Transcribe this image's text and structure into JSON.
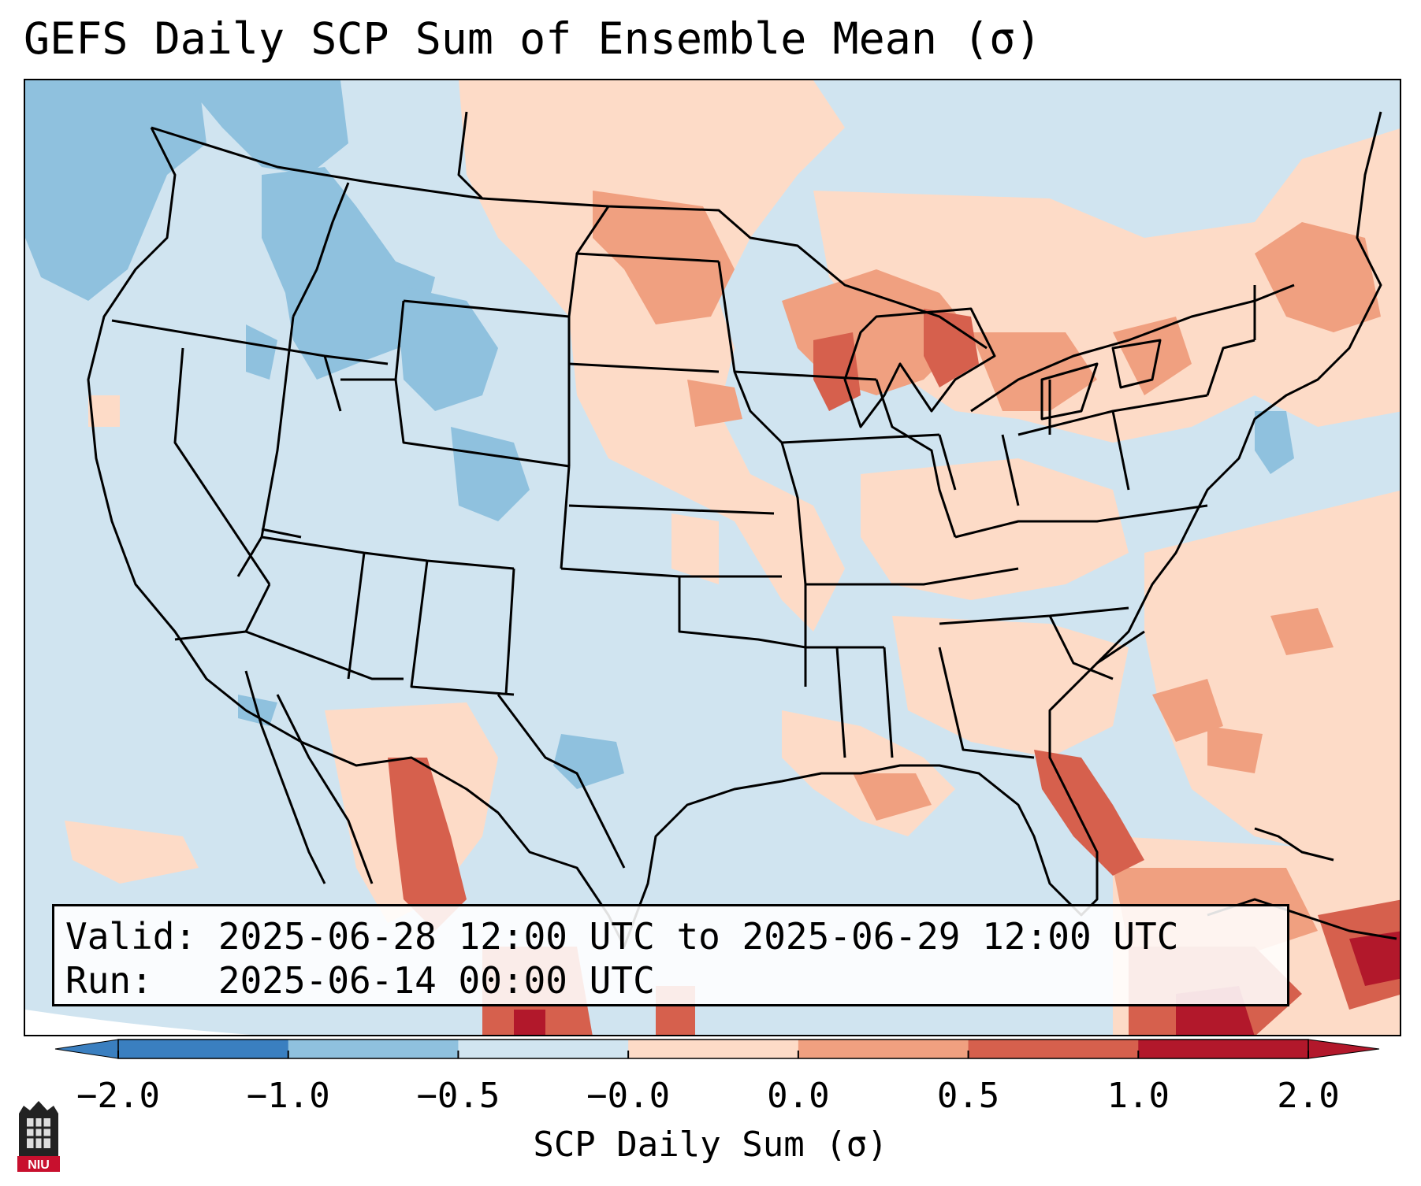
{
  "title": "GEFS Daily SCP Sum of Ensemble Mean (σ)",
  "info": {
    "valid_label": "Valid:",
    "valid_value": "2025-06-28 12:00 UTC to 2025-06-29 12:00 UTC",
    "run_label": "Run:",
    "run_value": "2025-06-14 00:00 UTC"
  },
  "colorbar": {
    "label": "SCP Daily Sum (σ)",
    "ticks": [
      "−2.0",
      "−1.0",
      "−0.5",
      "−0.0",
      "0.0",
      "0.5",
      "1.0",
      "2.0"
    ],
    "colors": [
      "#3a7fc0",
      "#8fc1de",
      "#d1e5f0",
      "#f7f7f7",
      "#fddbc7",
      "#f0a080",
      "#d6604d",
      "#b2182b"
    ],
    "extend": "both"
  },
  "map": {
    "background_color": "#d0e4f0",
    "region": "Contiguous United States",
    "colors": {
      "neg_strong": "#8fc1de",
      "neutral": "#d1e5f0",
      "pos_weak": "#fddbc7",
      "pos_mid": "#f0a080",
      "pos_strong": "#d6604d",
      "pos_max": "#b2182b"
    }
  },
  "logo": {
    "text": "NIU",
    "name": "niu-logo-icon"
  }
}
